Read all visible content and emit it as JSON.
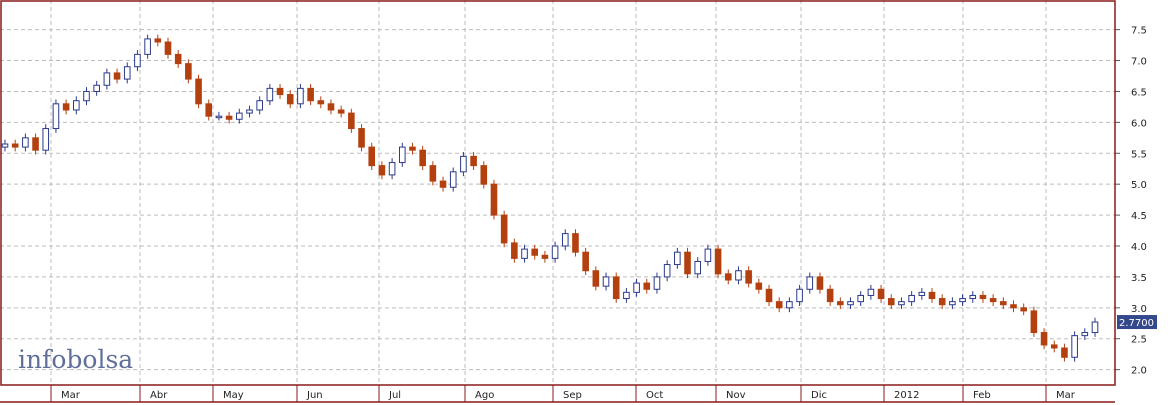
{
  "chart_data": {
    "type": "candlestick",
    "watermark": "infobolsa",
    "last_price_label": "2.7700",
    "x_tick_labels": [
      "Mar",
      "Abr",
      "May",
      "Jun",
      "Jul",
      "Ago",
      "Sep",
      "Oct",
      "Nov",
      "Dic",
      "2012",
      "Feb",
      "Mar"
    ],
    "y_tick_labels": [
      "2.0",
      "2.5",
      "3.0",
      "3.5",
      "4.0",
      "4.5",
      "5.0",
      "5.5",
      "6.0",
      "6.5",
      "7.0",
      "7.5"
    ],
    "y_ticks": [
      2.0,
      2.5,
      3.0,
      3.5,
      4.0,
      4.5,
      5.0,
      5.5,
      6.0,
      6.5,
      7.0,
      7.5
    ],
    "ylim": [
      1.8,
      7.85
    ],
    "grid": true,
    "colors": {
      "up": "#2b3a8c",
      "down": "#b4400f",
      "frame": "#8b1a1a",
      "grid": "#bdbdbd",
      "last_label_bg": "#34488c"
    },
    "closes": [
      5.65,
      5.6,
      5.75,
      5.55,
      5.9,
      6.3,
      6.2,
      6.35,
      6.5,
      6.6,
      6.8,
      6.7,
      6.9,
      7.1,
      7.35,
      7.3,
      7.1,
      6.95,
      6.7,
      6.3,
      6.1,
      6.1,
      6.05,
      6.15,
      6.2,
      6.35,
      6.55,
      6.45,
      6.3,
      6.55,
      6.35,
      6.3,
      6.2,
      6.15,
      5.9,
      5.6,
      5.3,
      5.15,
      5.35,
      5.6,
      5.55,
      5.3,
      5.05,
      4.95,
      5.2,
      5.45,
      5.3,
      5.0,
      4.5,
      4.05,
      3.8,
      3.95,
      3.85,
      3.8,
      4.0,
      4.2,
      3.9,
      3.6,
      3.35,
      3.5,
      3.15,
      3.25,
      3.4,
      3.3,
      3.5,
      3.7,
      3.9,
      3.55,
      3.75,
      3.95,
      3.55,
      3.45,
      3.6,
      3.4,
      3.3,
      3.1,
      3.0,
      3.1,
      3.3,
      3.5,
      3.3,
      3.1,
      3.05,
      3.1,
      3.2,
      3.3,
      3.15,
      3.05,
      3.1,
      3.2,
      3.25,
      3.15,
      3.05,
      3.1,
      3.15,
      3.2,
      3.15,
      3.1,
      3.05,
      3.0,
      2.95,
      2.6,
      2.4,
      2.35,
      2.2,
      2.55,
      2.6,
      2.77
    ]
  }
}
